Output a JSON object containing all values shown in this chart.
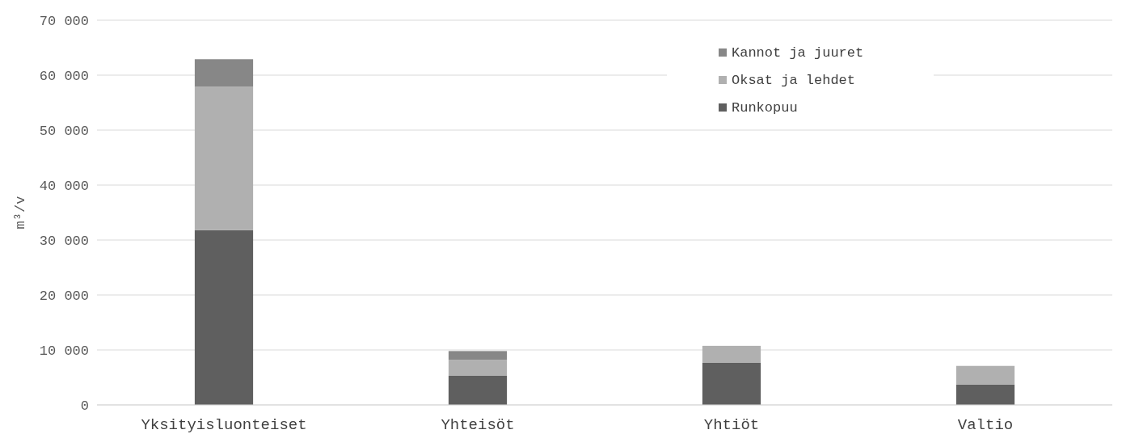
{
  "chart_data": {
    "type": "bar",
    "stacked": true,
    "ylabel": "m³/v",
    "categories": [
      "Yksityisluonteiset",
      "Yhteisöt",
      "Yhtiöt",
      "Valtio"
    ],
    "series": [
      {
        "name": "Runkopuu",
        "color": "#5f5f5f",
        "values": [
          31800,
          5300,
          7650,
          3700
        ]
      },
      {
        "name": "Oksat ja lehdet",
        "color": "#b0b0b0",
        "values": [
          26100,
          2900,
          3100,
          3400
        ]
      },
      {
        "name": "Kannot ja juuret",
        "color": "#878787",
        "values": [
          5000,
          1600,
          null,
          null
        ]
      }
    ],
    "ylim": [
      0,
      70000
    ],
    "yticks": [
      0,
      {
        "value": 10000,
        "label": "10 000"
      },
      {
        "value": 20000,
        "label": "20 000"
      },
      {
        "value": 30000,
        "label": "30 000"
      },
      {
        "value": 40000,
        "label": "40 000"
      },
      {
        "value": 50000,
        "label": "50 000"
      },
      {
        "value": 60000,
        "label": "60 000"
      },
      {
        "value": 70000,
        "label": "70 000"
      }
    ],
    "grid": "y",
    "legend": "top right"
  }
}
